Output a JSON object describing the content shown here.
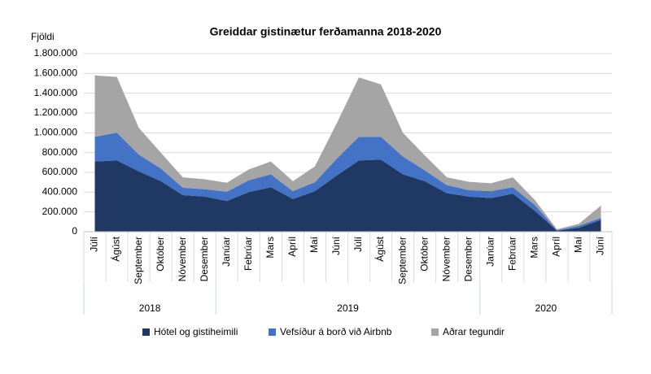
{
  "chart_data": {
    "type": "stacked_area",
    "title": "Greiddar gistinætur ferðamanna 2018-2020",
    "y_label": "Fjöldi",
    "groups": [
      {
        "label": "2018",
        "categories": [
          "Júlí",
          "Ágúst",
          "September",
          "Október",
          "Nóvember",
          "Desember"
        ]
      },
      {
        "label": "2019",
        "categories": [
          "Janúar",
          "Febrúar",
          "Mars",
          "Apríl",
          "Maí",
          "Júní",
          "Júlí",
          "Ágúst",
          "September",
          "Október",
          "Nóvember",
          "Desember"
        ]
      },
      {
        "label": "2020",
        "categories": [
          "Janúar",
          "Febrúar",
          "Mars",
          "Apríl",
          "Maí",
          "Júní"
        ]
      }
    ],
    "series": [
      {
        "name": "Hótel og gistiheimili",
        "color": "#1f3864",
        "values": [
          710000,
          720000,
          610000,
          510000,
          370000,
          355000,
          310000,
          400000,
          450000,
          330000,
          410000,
          570000,
          720000,
          730000,
          580000,
          510000,
          390000,
          355000,
          340000,
          385000,
          210000,
          10000,
          40000,
          120000
        ]
      },
      {
        "name": "Vefsíður á borð við Airbnb",
        "color": "#4472c4",
        "values": [
          250000,
          280000,
          170000,
          130000,
          75000,
          75000,
          95000,
          120000,
          130000,
          80000,
          90000,
          170000,
          240000,
          230000,
          180000,
          110000,
          80000,
          65000,
          70000,
          65000,
          60000,
          5000,
          20000,
          20000
        ]
      },
      {
        "name": "Aðrar tegundir",
        "color": "#a5a5a5",
        "values": [
          620000,
          565000,
          270000,
          160000,
          105000,
          100000,
          90000,
          110000,
          130000,
          100000,
          160000,
          360000,
          600000,
          530000,
          240000,
          150000,
          80000,
          85000,
          80000,
          100000,
          50000,
          10000,
          20000,
          125000
        ]
      }
    ],
    "ylim": [
      0,
      1800000
    ],
    "yticks": [
      0,
      {
        "value": 200000,
        "label": "200.000"
      },
      {
        "value": 400000,
        "label": "400.000"
      },
      {
        "value": 600000,
        "label": "600.000"
      },
      {
        "value": 800000,
        "label": "800.000"
      },
      {
        "value": 1000000,
        "label": "1.000.000"
      },
      {
        "value": 1200000,
        "label": "1.200.000"
      },
      {
        "value": 1400000,
        "label": "1.400.000"
      },
      {
        "value": 1600000,
        "label": "1.600.000"
      },
      {
        "value": 1800000,
        "label": "1.800.000"
      }
    ],
    "grid": true
  }
}
